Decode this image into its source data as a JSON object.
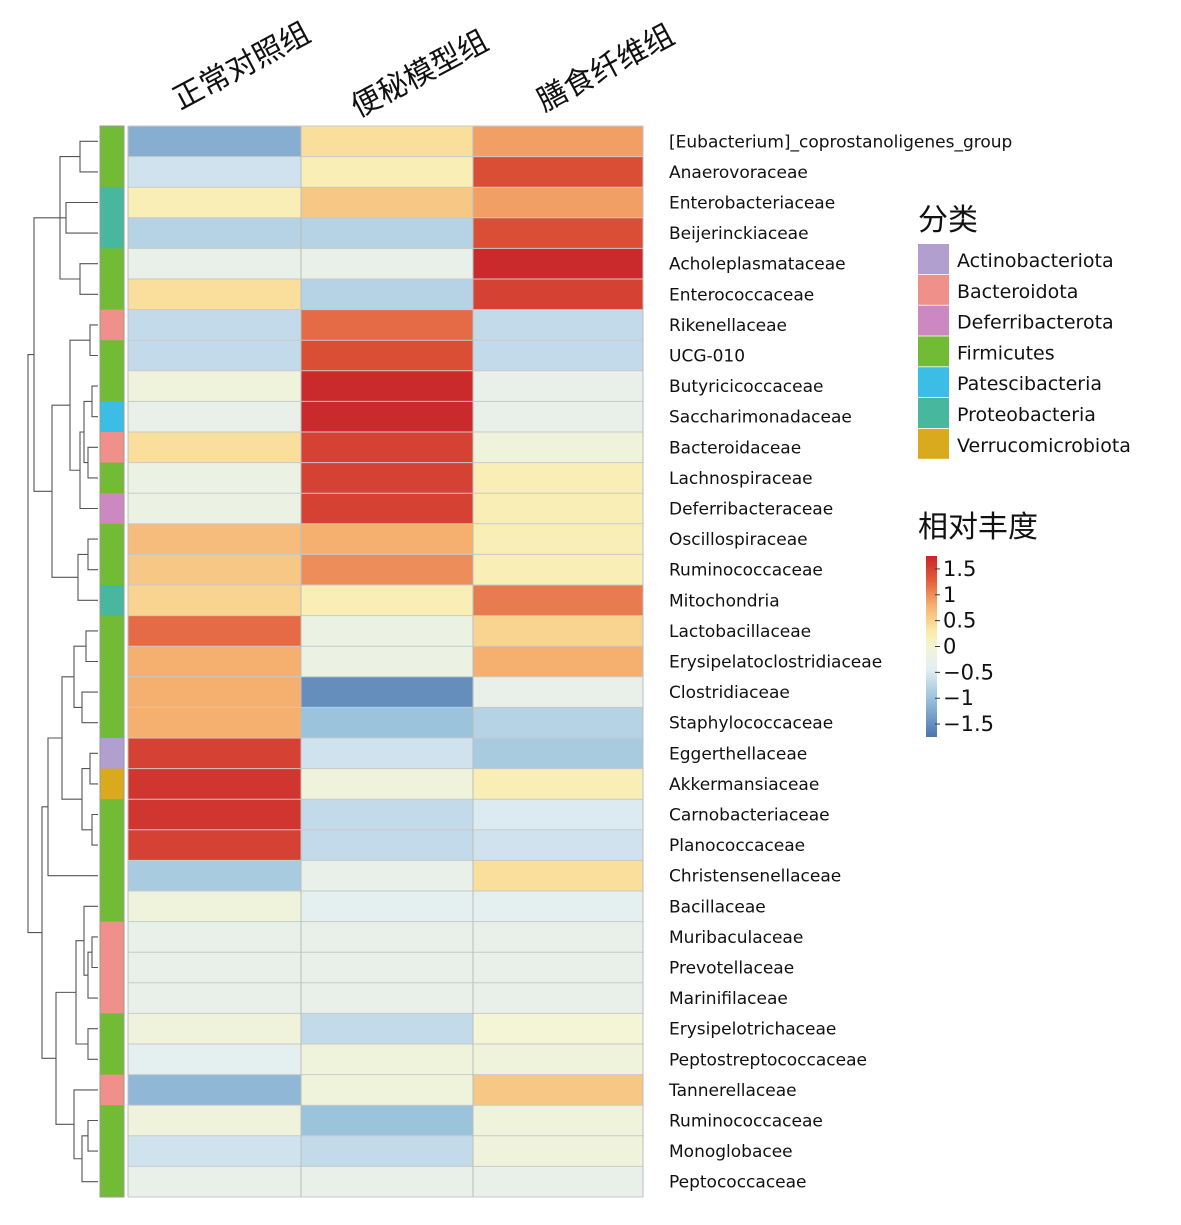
{
  "chart_data": {
    "type": "heatmap",
    "columns": [
      "正常对照组",
      "便秘模型组",
      "膳食纤维组"
    ],
    "rows": [
      {
        "name": "[Eubacterium]_coprostanoligenes_group",
        "phylum": "Firmicutes",
        "values": [
          -1.2,
          0.4,
          0.9
        ]
      },
      {
        "name": "Anaerovoraceae",
        "phylum": "Firmicutes",
        "values": [
          -0.6,
          0.2,
          1.4
        ]
      },
      {
        "name": "Enterobacteriaceae",
        "phylum": "Proteobacteria",
        "values": [
          0.2,
          0.6,
          0.9
        ]
      },
      {
        "name": "Beijerinckiaceae",
        "phylum": "Proteobacteria",
        "values": [
          -0.8,
          -0.8,
          1.4
        ]
      },
      {
        "name": "Acholeplasmataceae",
        "phylum": "Firmicutes",
        "values": [
          -0.3,
          -0.3,
          1.7
        ]
      },
      {
        "name": "Enterococcaceae",
        "phylum": "Firmicutes",
        "values": [
          0.4,
          -0.8,
          1.5
        ]
      },
      {
        "name": "Rikenellaceae",
        "phylum": "Bacteroidota",
        "values": [
          -0.7,
          1.2,
          -0.7
        ]
      },
      {
        "name": "UCG-010",
        "phylum": "Firmicutes",
        "values": [
          -0.7,
          1.4,
          -0.7
        ]
      },
      {
        "name": "Butyricicoccaceae",
        "phylum": "Firmicutes",
        "values": [
          -0.1,
          1.7,
          -0.3
        ]
      },
      {
        "name": "Saccharimonadaceae",
        "phylum": "Patescibacteria",
        "values": [
          -0.3,
          1.7,
          -0.3
        ]
      },
      {
        "name": "Bacteroidaceae",
        "phylum": "Bacteroidota",
        "values": [
          0.4,
          1.5,
          -0.1
        ]
      },
      {
        "name": "Lachnospiraceae",
        "phylum": "Firmicutes",
        "values": [
          -0.2,
          1.5,
          0.2
        ]
      },
      {
        "name": "Deferribacteraceae",
        "phylum": "Deferribacterota",
        "values": [
          -0.2,
          1.5,
          0.2
        ]
      },
      {
        "name": "Oscillospiraceae",
        "phylum": "Firmicutes",
        "values": [
          0.7,
          0.8,
          0.2
        ]
      },
      {
        "name": "Ruminococcaceae",
        "phylum": "Firmicutes",
        "values": [
          0.6,
          1.0,
          0.2
        ]
      },
      {
        "name": "Mitochondria",
        "phylum": "Proteobacteria",
        "values": [
          0.5,
          0.2,
          1.1
        ]
      },
      {
        "name": "Lactobacillaceae",
        "phylum": "Firmicutes",
        "values": [
          1.2,
          -0.2,
          0.5
        ]
      },
      {
        "name": "Erysipelatoclostridiaceae",
        "phylum": "Firmicutes",
        "values": [
          0.8,
          -0.2,
          0.8
        ]
      },
      {
        "name": "Clostridiaceae",
        "phylum": "Firmicutes",
        "values": [
          0.8,
          -1.5,
          -0.3
        ]
      },
      {
        "name": "Staphylococcaceae",
        "phylum": "Firmicutes",
        "values": [
          0.8,
          -1.0,
          -0.8
        ]
      },
      {
        "name": "Eggerthellaceae",
        "phylum": "Actinobacteriota",
        "values": [
          1.5,
          -0.6,
          -0.9
        ]
      },
      {
        "name": "Akkermansiaceae",
        "phylum": "Verrucomicrobiota",
        "values": [
          1.6,
          -0.1,
          0.2
        ]
      },
      {
        "name": "Carnobacteriaceae",
        "phylum": "Firmicutes",
        "values": [
          1.6,
          -0.7,
          -0.5
        ]
      },
      {
        "name": "Planococcaceae",
        "phylum": "Firmicutes",
        "values": [
          1.5,
          -0.7,
          -0.6
        ]
      },
      {
        "name": "Christensenellaceae",
        "phylum": "Firmicutes",
        "values": [
          -0.9,
          -0.3,
          0.4
        ]
      },
      {
        "name": "Bacillaceae",
        "phylum": "Firmicutes",
        "values": [
          -0.1,
          -0.4,
          -0.4
        ]
      },
      {
        "name": "Muribaculaceae",
        "phylum": "Bacteroidota",
        "values": [
          -0.3,
          -0.3,
          -0.3
        ]
      },
      {
        "name": "Prevotellaceae",
        "phylum": "Bacteroidota",
        "values": [
          -0.3,
          -0.3,
          -0.3
        ]
      },
      {
        "name": "Marinifilaceae",
        "phylum": "Bacteroidota",
        "values": [
          -0.3,
          -0.3,
          -0.3
        ]
      },
      {
        "name": "Erysipelotrichaceae",
        "phylum": "Firmicutes",
        "values": [
          -0.1,
          -0.7,
          0.0
        ]
      },
      {
        "name": "Peptostreptococcaceae",
        "phylum": "Firmicutes",
        "values": [
          -0.4,
          -0.1,
          -0.1
        ]
      },
      {
        "name": "Tannerellaceae",
        "phylum": "Bacteroidota",
        "values": [
          -1.1,
          -0.1,
          0.6
        ]
      },
      {
        "name": "Ruminococcaceae",
        "phylum": "Firmicutes",
        "values": [
          -0.1,
          -1.0,
          -0.1
        ]
      },
      {
        "name": "Monoglobacee",
        "phylum": "Firmicutes",
        "values": [
          -0.6,
          -0.7,
          -0.1
        ]
      },
      {
        "name": "Peptococcaceae",
        "phylum": "Firmicutes",
        "values": [
          -0.3,
          -0.3,
          -0.3
        ]
      }
    ],
    "annotation": {
      "title": "分类",
      "items": [
        {
          "label": "Actinobacteriota",
          "color": "#b09fcf"
        },
        {
          "label": "Bacteroidota",
          "color": "#f0908a"
        },
        {
          "label": "Deferribacterota",
          "color": "#cc88c0"
        },
        {
          "label": "Firmicutes",
          "color": "#72bc35"
        },
        {
          "label": "Patescibacteria",
          "color": "#3bbde6"
        },
        {
          "label": "Proteobacteria",
          "color": "#47b79e"
        },
        {
          "label": "Verrucomicrobiota",
          "color": "#d9aa1e"
        }
      ]
    },
    "colorbar": {
      "title": "相对丰度",
      "range": [
        -1.75,
        1.75
      ],
      "ticks": [
        {
          "value": 1.5,
          "label": "1.5"
        },
        {
          "value": 1,
          "label": "1"
        },
        {
          "value": 0.5,
          "label": "0.5"
        },
        {
          "value": 0,
          "label": "0"
        },
        {
          "value": -0.5,
          "label": "−0.5"
        },
        {
          "value": -1,
          "label": "−1"
        },
        {
          "value": -1.5,
          "label": "−1.5"
        }
      ],
      "stops": [
        {
          "value": -1.75,
          "color": "#4c74ae"
        },
        {
          "value": -1.0,
          "color": "#9bc3dc"
        },
        {
          "value": -0.45,
          "color": "#e2eef3"
        },
        {
          "value": 0.0,
          "color": "#f4f5d6"
        },
        {
          "value": 0.3,
          "color": "#fbeaa6"
        },
        {
          "value": 0.8,
          "color": "#f5b070"
        },
        {
          "value": 1.3,
          "color": "#e05a3a"
        },
        {
          "value": 1.75,
          "color": "#c8242a"
        }
      ]
    }
  }
}
